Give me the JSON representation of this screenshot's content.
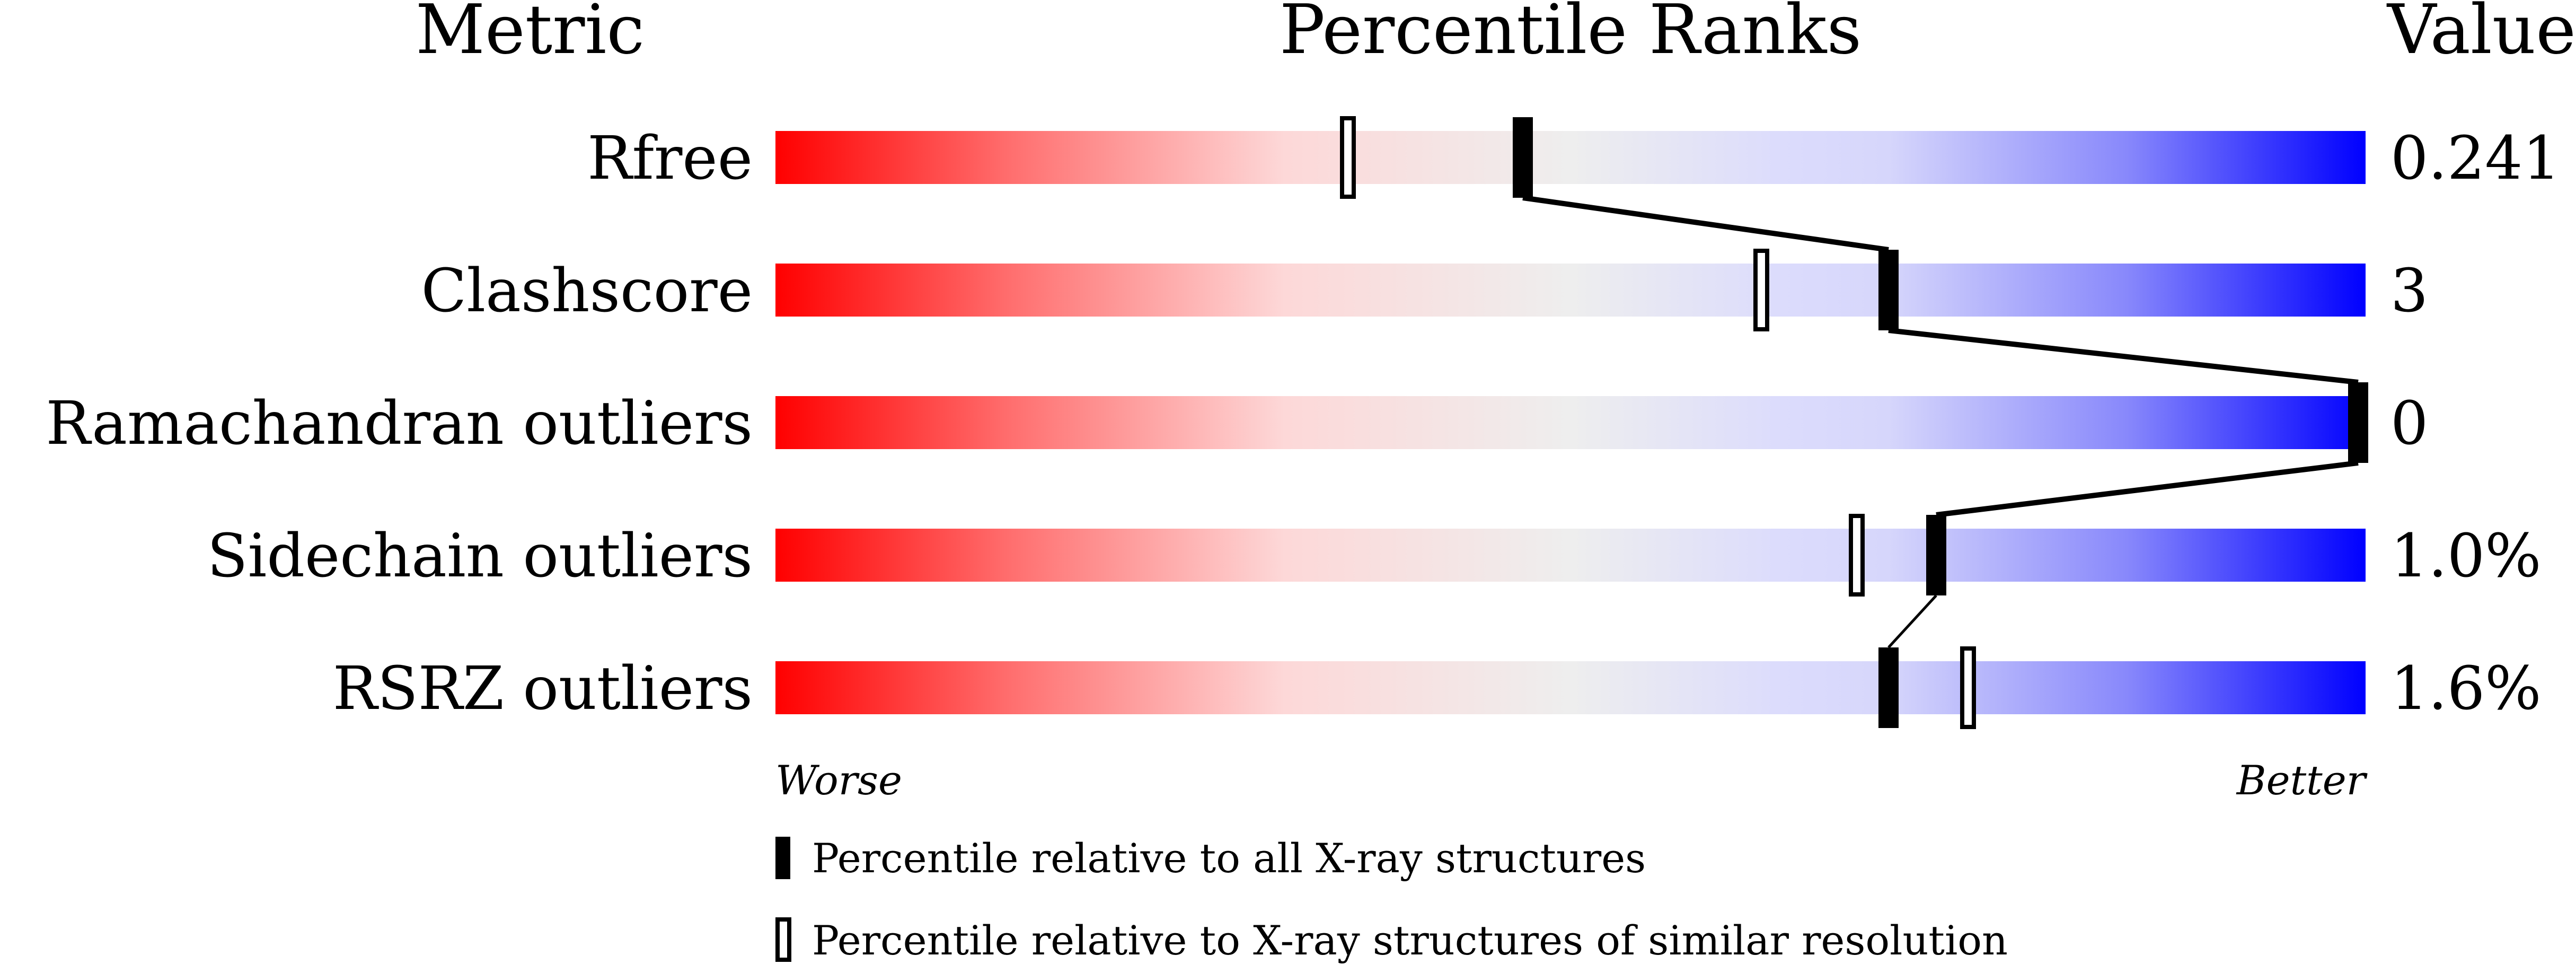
{
  "chart_data": {
    "type": "percentile-slider",
    "headers": {
      "metric": "Metric",
      "ranks": "Percentile Ranks",
      "value": "Value"
    },
    "xlim": [
      0,
      100
    ],
    "axis_labels": {
      "left": "Worse",
      "right": "Better"
    },
    "metrics": [
      {
        "name": "Rfree",
        "value": "0.241",
        "percentile_all": 47,
        "percentile_similar": 36
      },
      {
        "name": "Clashscore",
        "value": "3",
        "percentile_all": 70,
        "percentile_similar": 62
      },
      {
        "name": "Ramachandran outliers",
        "value": "0",
        "percentile_all": 100,
        "percentile_similar": 100
      },
      {
        "name": "Sidechain outliers",
        "value": "1.0%",
        "percentile_all": 73,
        "percentile_similar": 68
      },
      {
        "name": "RSRZ outliers",
        "value": "1.6%",
        "percentile_all": 70,
        "percentile_similar": 75
      }
    ],
    "legend": [
      {
        "marker": "filled",
        "label": "Percentile relative to all X-ray structures"
      },
      {
        "marker": "open",
        "label": "Percentile relative to X-ray structures of similar resolution"
      }
    ],
    "colors": {
      "worse": "#ff0000",
      "middle": "#eeeeee",
      "better": "#0000ff"
    }
  }
}
